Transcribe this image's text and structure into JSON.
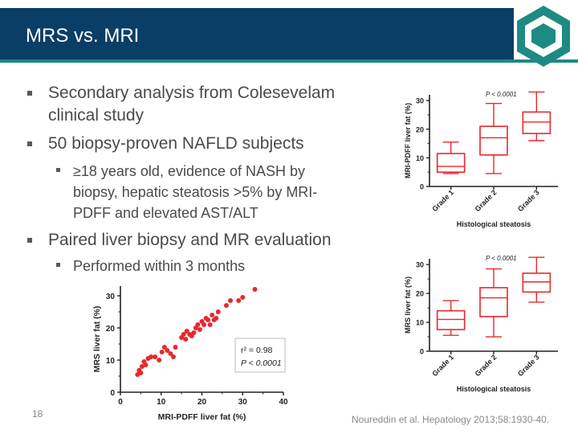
{
  "slide": {
    "title": "MRS vs. MRI",
    "page_number": "18",
    "citation": "Noureddin et al. Hepatology 2013;58:1930-40.",
    "accent_color": "#1e8a84",
    "header_color": "#0b3e66"
  },
  "bullets": [
    {
      "level": 1,
      "text": "Secondary analysis from Colesevelam clinical study"
    },
    {
      "level": 1,
      "text": "50 biopsy-proven NAFLD subjects"
    },
    {
      "level": 2,
      "text": "≥18 years old, evidence of NASH by biopsy, hepatic steatosis >5% by MRI-PDFF and elevated AST/ALT"
    },
    {
      "level": 1,
      "text": "Paired liver biopsy and MR evaluation"
    },
    {
      "level": 2,
      "text": "Performed within 3 months"
    }
  ],
  "bullet_lines": {
    "b1_l1": "Secondary analysis from Colesevelam",
    "b1_l2": "clinical study",
    "b2_l1": "50 biopsy-proven NAFLD subjects",
    "b3_l1": "≥18 years old, evidence of NASH by",
    "b3_l2": "biopsy, hepatic steatosis >5% by MRI-",
    "b3_l3": "PDFF and elevated AST/ALT",
    "b4_l1": "Paired liver biopsy and MR evaluation",
    "b5_l1": "Performed within 3 months"
  },
  "chart_data": [
    {
      "type": "scatter",
      "xlabel": "MRI-PDFF liver fat (%)",
      "ylabel": "MRS liver fat (%)",
      "xlim": [
        0,
        40
      ],
      "ylim": [
        0,
        33
      ],
      "xticks": [
        "0",
        "10",
        "20",
        "30",
        "40"
      ],
      "yticks": [
        "0",
        "10",
        "20",
        "30"
      ],
      "annotation": {
        "r2": "r² = 0.98",
        "p": "P < 0.0001"
      },
      "point_color": "#e8282d",
      "points": [
        [
          4.2,
          5.5
        ],
        [
          4.6,
          6.8
        ],
        [
          5.0,
          6.0
        ],
        [
          5.3,
          8.0
        ],
        [
          5.8,
          9.5
        ],
        [
          6.2,
          8.5
        ],
        [
          6.8,
          10.5
        ],
        [
          7.5,
          11.0
        ],
        [
          8.5,
          11.0
        ],
        [
          9.5,
          10.0
        ],
        [
          10.2,
          12.5
        ],
        [
          10.8,
          14.0
        ],
        [
          11.5,
          13.0
        ],
        [
          12.3,
          12.0
        ],
        [
          13.0,
          11.0
        ],
        [
          13.5,
          14.0
        ],
        [
          15.0,
          17.0
        ],
        [
          15.5,
          18.0
        ],
        [
          16.0,
          16.5
        ],
        [
          16.3,
          19.0
        ],
        [
          17.0,
          18.0
        ],
        [
          17.5,
          17.5
        ],
        [
          18.0,
          18.5
        ],
        [
          18.5,
          20.0
        ],
        [
          19.0,
          21.0
        ],
        [
          19.5,
          19.5
        ],
        [
          20.0,
          22.0
        ],
        [
          20.5,
          21.0
        ],
        [
          21.0,
          23.0
        ],
        [
          21.5,
          22.5
        ],
        [
          22.0,
          21.0
        ],
        [
          22.5,
          24.0
        ],
        [
          23.0,
          22.5
        ],
        [
          23.5,
          23.0
        ],
        [
          24.0,
          25.0
        ],
        [
          26.0,
          27.0
        ],
        [
          27.0,
          28.5
        ],
        [
          29.0,
          28.5
        ],
        [
          30.0,
          29.5
        ],
        [
          33.0,
          32.0
        ]
      ]
    },
    {
      "type": "box",
      "title": "P < 0.0001",
      "xlabel": "Histological steatosis",
      "ylabel": "MRI-PDFF liver fat (%)",
      "ylim": [
        0,
        32
      ],
      "yticks": [
        "0",
        "10",
        "20",
        "30"
      ],
      "categories": [
        "Grade 1",
        "Grade 2",
        "Grade 3"
      ],
      "box_color": "#e8282d",
      "boxes": [
        {
          "min": 4.5,
          "q1": 5.0,
          "median": 7.0,
          "q3": 11.5,
          "max": 15.5
        },
        {
          "min": 4.5,
          "q1": 11.0,
          "median": 17.0,
          "q3": 21.0,
          "max": 29.0
        },
        {
          "min": 16.0,
          "q1": 18.5,
          "median": 22.5,
          "q3": 26.0,
          "max": 33.0
        }
      ]
    },
    {
      "type": "box",
      "title": "P < 0.0001",
      "xlabel": "Histological steatosis",
      "ylabel": "MRS liver fat (%)",
      "ylim": [
        0,
        32
      ],
      "yticks": [
        "0",
        "10",
        "20",
        "30"
      ],
      "categories": [
        "Grade 1",
        "Grade 2",
        "Grade 3"
      ],
      "box_color": "#e8282d",
      "boxes": [
        {
          "min": 5.5,
          "q1": 7.5,
          "median": 11.0,
          "q3": 14.0,
          "max": 17.5
        },
        {
          "min": 5.0,
          "q1": 12.0,
          "median": 18.5,
          "q3": 22.0,
          "max": 28.5
        },
        {
          "min": 17.0,
          "q1": 20.5,
          "median": 24.0,
          "q3": 27.0,
          "max": 32.5
        }
      ]
    }
  ]
}
